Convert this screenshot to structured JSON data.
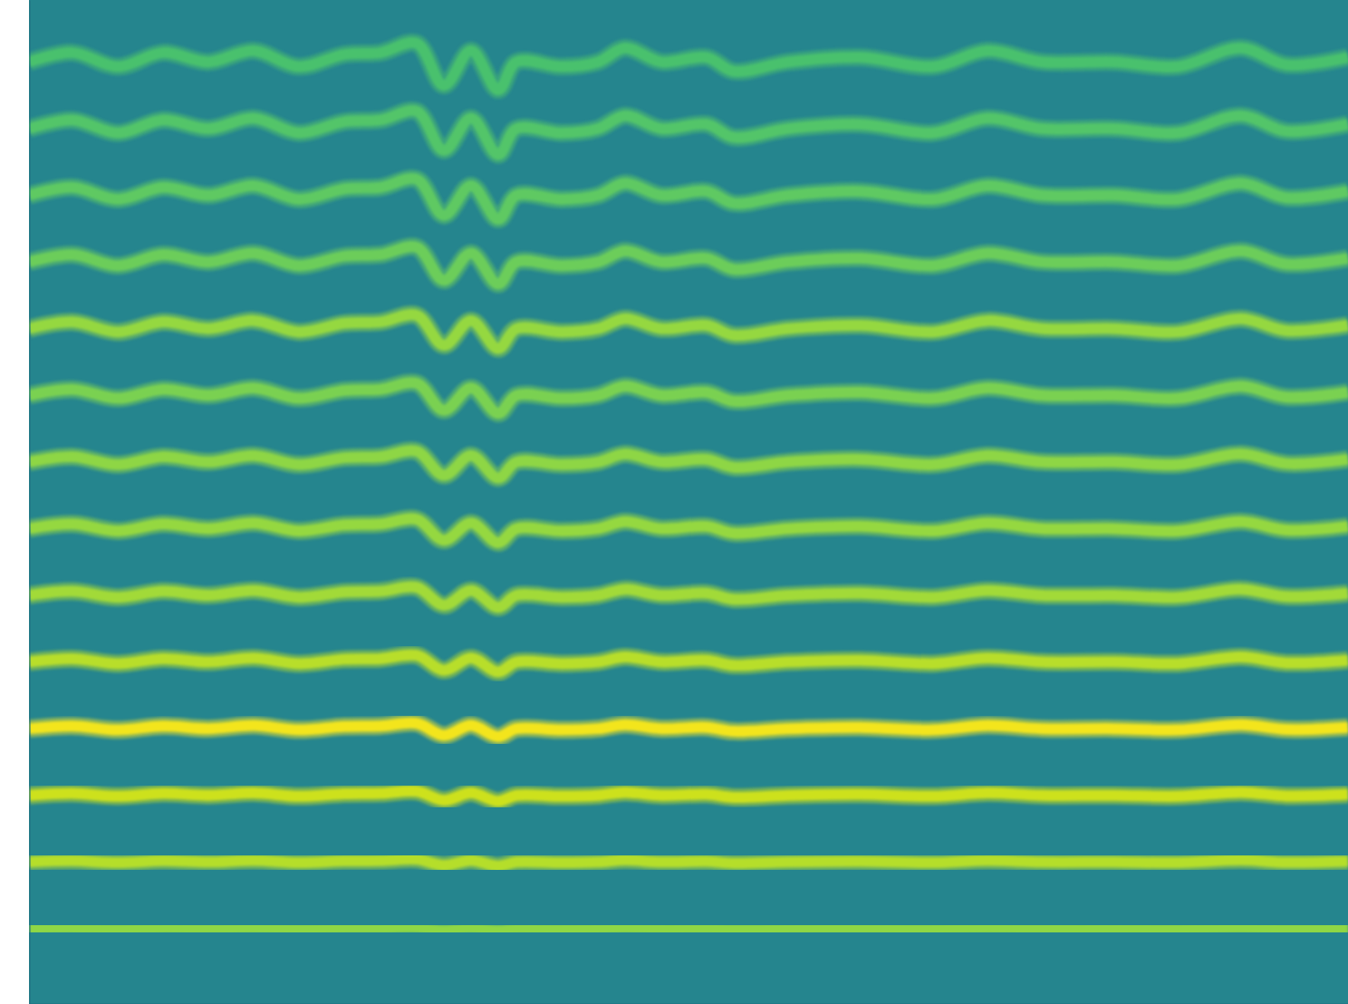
{
  "chart_data": {
    "type": "line",
    "tick_labels": false,
    "x": [
      0,
      48,
      98,
      148,
      198,
      248,
      298,
      348,
      388,
      428,
      458,
      488,
      518,
      538,
      588,
      628,
      658,
      698,
      748,
      778,
      838,
      918,
      998,
      1058,
      1118,
      1198,
      1268,
      1338,
      1388,
      1456
    ],
    "xlim": [
      0,
      1456
    ],
    "ylim": [
      -0.13,
      14.93
    ],
    "series": [
      {
        "color": "#8fd744",
        "values": [
          1,
          1.01,
          0.995,
          1.01,
          1,
          1.012,
          0.995,
          1.008,
          1.01,
          1.02,
          0.975,
          1.012,
          0.97,
          1,
          0.995,
          1,
          1.015,
          1,
          1.005,
          0.99,
          1,
          1.005,
          0.995,
          1.012,
          1,
          1,
          0.995,
          1.015,
          0.997,
          1.005
        ]
      },
      {
        "color": "#b5de2b",
        "values": [
          2,
          2.02,
          1.99,
          2.02,
          2,
          2.024,
          1.99,
          2.016,
          2.02,
          2.04,
          1.95,
          2.024,
          1.94,
          2,
          1.99,
          2,
          2.03,
          2,
          2.01,
          1.98,
          2,
          2.01,
          1.99,
          2.024,
          2,
          2,
          1.99,
          2.03,
          1.994,
          2.01
        ]
      },
      {
        "color": "#cde11d",
        "values": [
          3,
          3.03,
          2.985,
          3.03,
          3,
          3.036,
          2.985,
          3.024,
          3.03,
          3.06,
          2.925,
          3.036,
          2.91,
          3,
          2.985,
          3,
          3.045,
          3,
          3.015,
          2.97,
          3,
          3.015,
          2.985,
          3.036,
          3,
          3,
          2.985,
          3.045,
          2.991,
          3.015
        ]
      },
      {
        "color": "#f3e51e",
        "values": [
          4,
          4.04,
          3.98,
          4.04,
          4,
          4.048,
          3.98,
          4.032,
          4.04,
          4.08,
          3.9,
          4.048,
          3.88,
          4,
          3.98,
          4,
          4.06,
          4,
          4.02,
          3.96,
          4,
          4.02,
          3.98,
          4.048,
          4,
          4,
          3.98,
          4.06,
          3.988,
          4.02
        ]
      },
      {
        "color": "#b8de29",
        "values": [
          5,
          5.05,
          4.975,
          5.05,
          5,
          5.06,
          4.975,
          5.04,
          5.05,
          5.1,
          4.875,
          5.06,
          4.85,
          5,
          4.975,
          5,
          5.075,
          5,
          5.025,
          4.95,
          5,
          5.025,
          4.975,
          5.06,
          5,
          5,
          4.975,
          5.075,
          4.985,
          5.025
        ]
      },
      {
        "color": "#a2da37",
        "values": [
          6,
          6.06,
          5.97,
          6.06,
          6,
          6.072,
          5.97,
          6.048,
          6.06,
          6.12,
          5.85,
          6.072,
          5.82,
          6,
          5.97,
          6,
          6.09,
          6,
          6.03,
          5.94,
          6,
          6.03,
          5.97,
          6.072,
          6,
          6,
          5.97,
          6.09,
          5.982,
          6.03
        ]
      },
      {
        "color": "#95d840",
        "values": [
          7,
          7.07,
          6.965,
          7.07,
          7,
          7.084,
          6.965,
          7.056,
          7.07,
          7.14,
          6.825,
          7.084,
          6.79,
          7,
          6.965,
          7,
          7.105,
          7,
          7.035,
          6.93,
          7,
          7.035,
          6.965,
          7.084,
          7,
          7,
          6.965,
          7.105,
          6.979,
          7.035
        ]
      },
      {
        "color": "#8ed645",
        "values": [
          8,
          8.08,
          7.96,
          8.08,
          8,
          8.096,
          7.96,
          8.064,
          8.08,
          8.16,
          7.8,
          8.096,
          7.76,
          8,
          7.96,
          8,
          8.12,
          8,
          8.04,
          7.92,
          8,
          8.04,
          7.96,
          8.096,
          8,
          8,
          7.96,
          8.12,
          7.976,
          8.04
        ]
      },
      {
        "color": "#7ad151",
        "values": [
          9,
          9.09,
          8.955,
          9.09,
          9,
          9.108,
          8.955,
          9.072,
          9.09,
          9.18,
          8.775,
          9.108,
          8.73,
          9,
          8.955,
          9,
          9.135,
          9,
          9.045,
          8.91,
          9,
          9.045,
          8.955,
          9.108,
          9,
          9,
          8.955,
          9.135,
          8.973,
          9.045
        ]
      },
      {
        "color": "#95d840",
        "values": [
          10,
          10.1,
          9.95,
          10.1,
          10,
          10.12,
          9.95,
          10.08,
          10.1,
          10.2,
          9.75,
          10.12,
          9.7,
          10,
          9.95,
          10,
          10.15,
          10,
          10.05,
          9.9,
          10,
          10.05,
          9.95,
          10.12,
          10,
          10,
          9.95,
          10.15,
          9.97,
          10.05
        ]
      },
      {
        "color": "#6ccd5a",
        "values": [
          11,
          11.11,
          10.945,
          11.11,
          11,
          11.132,
          10.945,
          11.088,
          11.11,
          11.22,
          10.725,
          11.132,
          10.67,
          11,
          10.945,
          11,
          11.165,
          11,
          11.055,
          10.89,
          11,
          11.055,
          10.945,
          11.132,
          11,
          11,
          10.945,
          11.165,
          10.967,
          11.055
        ]
      },
      {
        "color": "#5ec962",
        "values": [
          12,
          12.12,
          11.94,
          12.12,
          12,
          12.144,
          11.94,
          12.096,
          12.12,
          12.24,
          11.7,
          12.144,
          11.64,
          12,
          11.94,
          12,
          12.18,
          12,
          12.06,
          11.88,
          12,
          12.06,
          11.94,
          12.144,
          12,
          12,
          11.94,
          12.18,
          11.964,
          12.06
        ]
      },
      {
        "color": "#52c569",
        "values": [
          13,
          13.13,
          12.935,
          13.13,
          13,
          13.156,
          12.935,
          13.104,
          13.13,
          13.26,
          12.675,
          13.156,
          12.61,
          13,
          12.935,
          13,
          13.195,
          13,
          13.065,
          12.87,
          13,
          13.065,
          12.935,
          13.156,
          13,
          13,
          12.935,
          13.195,
          12.961,
          13.065
        ]
      },
      {
        "color": "#4ac16d",
        "values": [
          14,
          14.14,
          13.93,
          14.14,
          14,
          14.168,
          13.93,
          14.112,
          14.14,
          14.28,
          13.65,
          14.168,
          13.58,
          14,
          13.93,
          14,
          14.21,
          14,
          14.07,
          13.86,
          14,
          14.07,
          13.93,
          14.168,
          14,
          14,
          13.93,
          14.21,
          13.958,
          14.07
        ]
      }
    ]
  }
}
